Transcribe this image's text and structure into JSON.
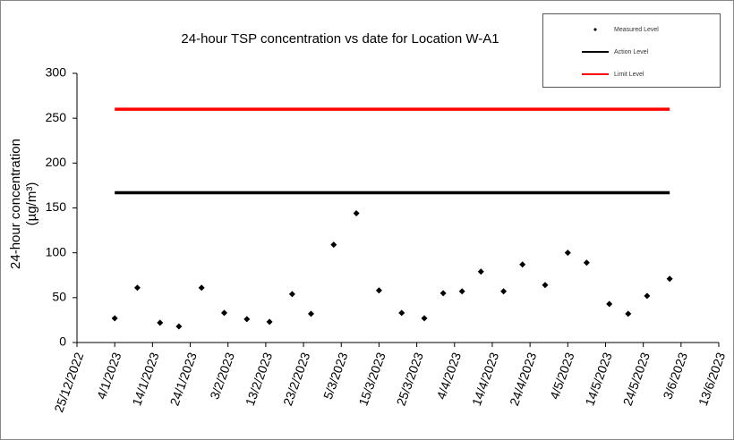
{
  "chart_data": {
    "type": "scatter",
    "title": "24-hour TSP concentration vs date for Location W-A1",
    "y_label": [
      "24-hour concentration",
      "(µg/m³)"
    ],
    "xlim": [
      "2022-12-25",
      "2023-06-13"
    ],
    "xticks": [
      {
        "value": "2022-12-25",
        "label": "25/12/2022"
      },
      {
        "value": "2023-01-04",
        "label": "4/1/2023"
      },
      {
        "value": "2023-01-14",
        "label": "14/1/2023"
      },
      {
        "value": "2023-01-24",
        "label": "24/1/2023"
      },
      {
        "value": "2023-02-03",
        "label": "3/2/2023"
      },
      {
        "value": "2023-02-13",
        "label": "13/2/2023"
      },
      {
        "value": "2023-02-23",
        "label": "23/2/2023"
      },
      {
        "value": "2023-03-05",
        "label": "5/3/2023"
      },
      {
        "value": "2023-03-15",
        "label": "15/3/2023"
      },
      {
        "value": "2023-03-25",
        "label": "25/3/2023"
      },
      {
        "value": "2023-04-04",
        "label": "4/4/2023"
      },
      {
        "value": "2023-04-14",
        "label": "14/4/2023"
      },
      {
        "value": "2023-04-24",
        "label": "24/4/2023"
      },
      {
        "value": "2023-05-04",
        "label": "4/5/2023"
      },
      {
        "value": "2023-05-14",
        "label": "14/5/2023"
      },
      {
        "value": "2023-05-24",
        "label": "24/5/2023"
      },
      {
        "value": "2023-06-03",
        "label": "3/6/2023"
      },
      {
        "value": "2023-06-13",
        "label": "13/6/2023"
      }
    ],
    "ylim": [
      0,
      300
    ],
    "yticks": [
      0,
      50,
      100,
      150,
      200,
      250,
      300
    ],
    "grid": false,
    "legend": "top-right",
    "series": [
      {
        "name": "Measured Level",
        "style": "markers",
        "color": "#000000",
        "x": [
          "2023-01-04",
          "2023-01-10",
          "2023-01-16",
          "2023-01-21",
          "2023-01-27",
          "2023-02-02",
          "2023-02-08",
          "2023-02-14",
          "2023-02-20",
          "2023-02-25",
          "2023-03-03",
          "2023-03-09",
          "2023-03-15",
          "2023-03-21",
          "2023-03-27",
          "2023-04-01",
          "2023-04-06",
          "2023-04-11",
          "2023-04-17",
          "2023-04-22",
          "2023-04-28",
          "2023-05-04",
          "2023-05-09",
          "2023-05-15",
          "2023-05-20",
          "2023-05-25",
          "2023-05-31"
        ],
        "values": [
          27,
          61,
          22,
          18,
          61,
          33,
          26,
          23,
          54,
          32,
          109,
          144,
          58,
          33,
          27,
          55,
          57,
          79,
          57,
          87,
          64,
          100,
          89,
          43,
          32,
          52,
          71
        ]
      },
      {
        "name": "Action Level",
        "style": "line",
        "color": "#000000",
        "x": [
          "2023-01-04",
          "2023-05-31"
        ],
        "values": [
          167,
          167
        ]
      },
      {
        "name": "Limit Level",
        "style": "line",
        "color": "#ff0000",
        "x": [
          "2023-01-04",
          "2023-05-31"
        ],
        "values": [
          260,
          260
        ]
      }
    ]
  }
}
